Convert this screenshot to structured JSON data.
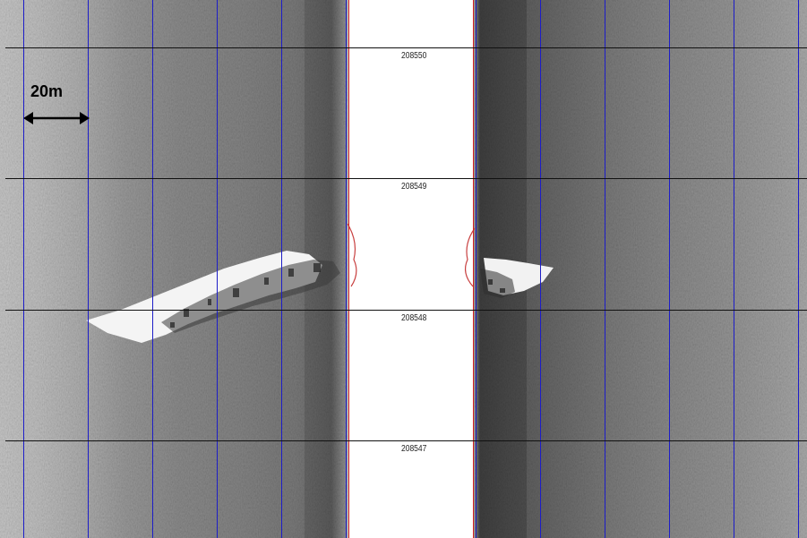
{
  "scale_bar": {
    "label": "20m",
    "icon": "double-headed-arrow-icon"
  },
  "ping_markers": [
    "208550",
    "208549",
    "208548",
    "208547"
  ],
  "colors": {
    "grid_vertical": "#1d1dc8",
    "grid_horizontal": "#111111",
    "nadir_line": "#d22020",
    "water_column": "#ffffff"
  }
}
